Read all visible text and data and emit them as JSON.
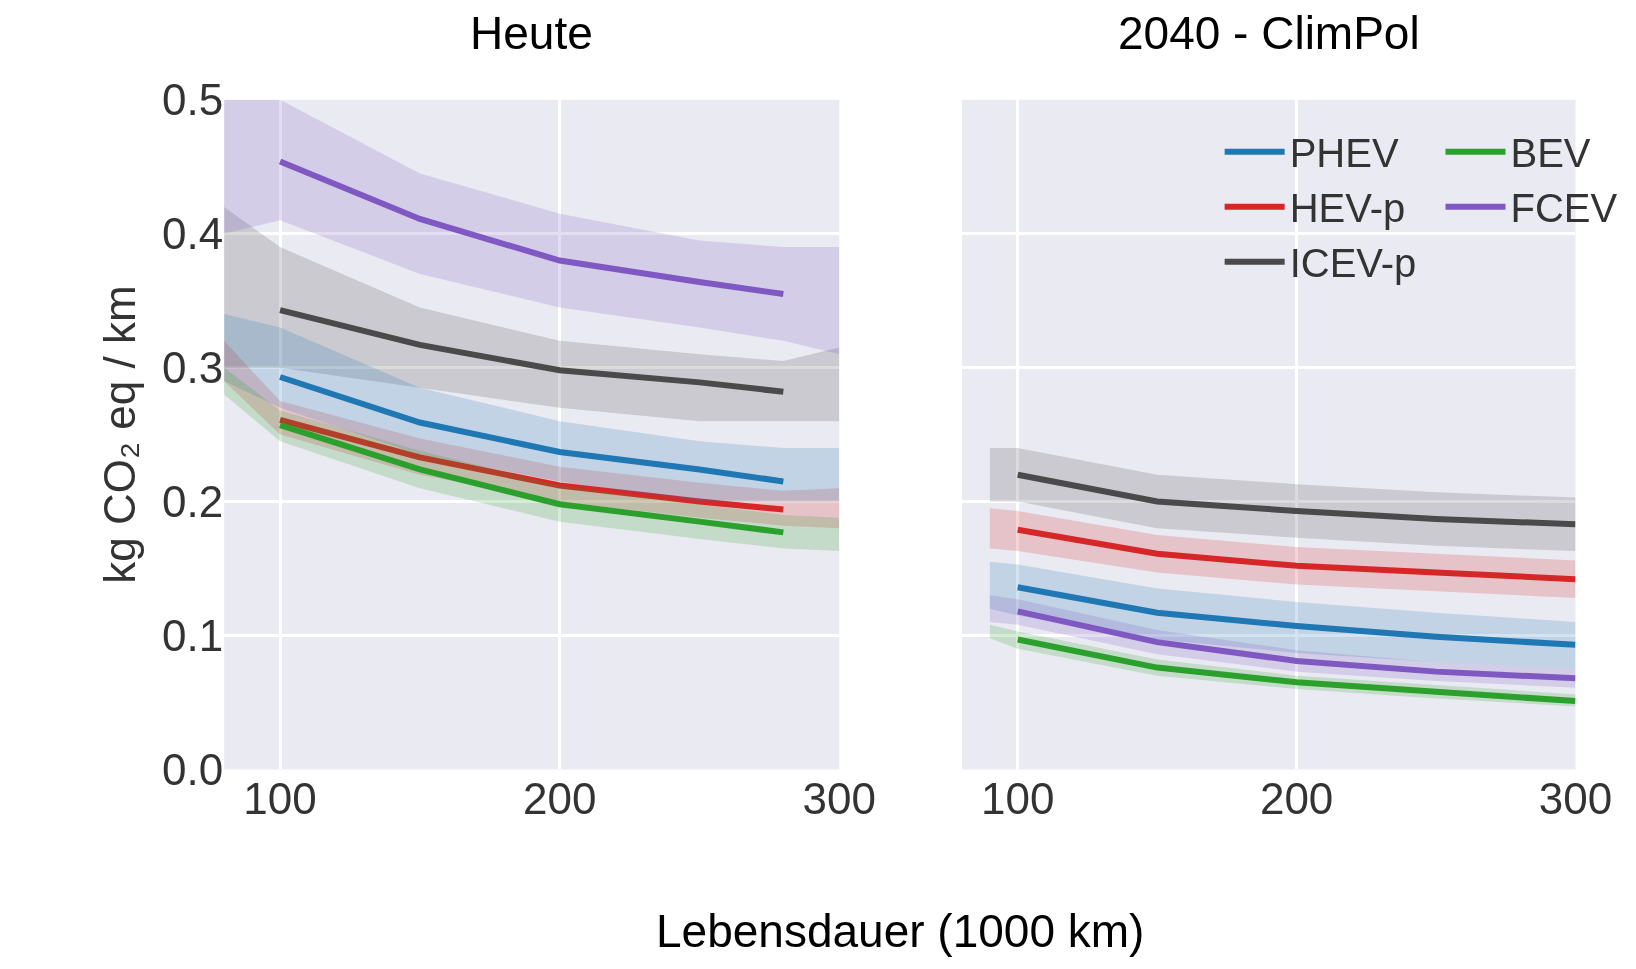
{
  "chart_data": [
    {
      "type": "line",
      "title": "Heute",
      "ylabel": "kg CO₂ eq / km",
      "xlabel": "Lebensdauer (1000 km)",
      "xlim": [
        80,
        300
      ],
      "xticks": [
        100,
        200,
        300
      ],
      "ylim": [
        0,
        0.5
      ],
      "yticks": [
        {
          "value": 0,
          "label": "0.0"
        },
        {
          "value": 0.1,
          "label": "0.1"
        },
        {
          "value": 0.2,
          "label": "0.2"
        },
        {
          "value": 0.3,
          "label": "0.3"
        },
        {
          "value": 0.4,
          "label": "0.4"
        },
        {
          "value": 0.5,
          "label": "0.5"
        }
      ],
      "grid": true,
      "legend": false,
      "line_style": "solid",
      "marker": "none",
      "series": [
        {
          "color": "#4a4a4a",
          "x": [
            80,
            100,
            150,
            200,
            250,
            280,
            300
          ],
          "values": [
            null,
            0.343,
            0.317,
            0.298,
            0.289,
            0.282,
            null
          ],
          "lower": [
            0.3,
            0.3,
            0.285,
            0.27,
            0.26,
            0.26,
            0.26
          ],
          "upper": [
            0.42,
            0.39,
            0.345,
            0.32,
            0.31,
            0.305,
            0.315
          ]
        },
        {
          "color": "#d62728",
          "x": [
            80,
            100,
            150,
            200,
            250,
            280,
            300
          ],
          "values": [
            null,
            0.261,
            0.233,
            0.212,
            0.2,
            0.194,
            null
          ],
          "lower": [
            0.29,
            0.25,
            0.22,
            0.2,
            0.188,
            0.182,
            0.18
          ],
          "upper": [
            0.32,
            0.275,
            0.247,
            0.226,
            0.214,
            0.208,
            0.21
          ]
        },
        {
          "color": "#1f77b4",
          "x": [
            80,
            100,
            150,
            200,
            250,
            280,
            300
          ],
          "values": [
            null,
            0.293,
            0.259,
            0.237,
            0.224,
            0.215,
            null
          ],
          "lower": [
            0.29,
            0.27,
            0.235,
            0.215,
            0.2,
            0.2,
            0.2
          ],
          "upper": [
            0.34,
            0.33,
            0.285,
            0.26,
            0.245,
            0.24,
            0.24
          ]
        },
        {
          "color": "#2ca02c",
          "x": [
            80,
            100,
            150,
            200,
            250,
            280,
            300
          ],
          "values": [
            null,
            0.257,
            0.224,
            0.198,
            0.185,
            0.177,
            null
          ],
          "lower": [
            0.28,
            0.245,
            0.21,
            0.185,
            0.172,
            0.165,
            0.163
          ],
          "upper": [
            0.3,
            0.268,
            0.238,
            0.212,
            0.198,
            0.19,
            0.188
          ]
        },
        {
          "color": "#7f58c2",
          "x": [
            80,
            100,
            150,
            200,
            250,
            280,
            300
          ],
          "values": [
            null,
            0.454,
            0.411,
            0.38,
            0.364,
            0.355,
            null
          ],
          "lower": [
            0.4,
            0.41,
            0.37,
            0.345,
            0.33,
            0.32,
            0.31
          ],
          "upper": [
            0.5,
            0.5,
            0.445,
            0.415,
            0.395,
            0.39,
            0.39
          ]
        }
      ]
    },
    {
      "type": "line",
      "title": "2040 - ClimPol",
      "xlim": [
        80,
        300
      ],
      "xticks": [
        100,
        200,
        300
      ],
      "ylim": [
        0,
        0.5
      ],
      "tick_labels": "x",
      "grid": true,
      "legend": "top right",
      "line_style": "solid",
      "marker": "none",
      "series": [
        {
          "name": "ICEV-p",
          "color": "#4a4a4a",
          "x": [
            90,
            100,
            150,
            200,
            250,
            300
          ],
          "values": [
            null,
            0.22,
            0.2,
            0.193,
            0.187,
            0.183
          ],
          "lower": [
            0.2,
            0.2,
            0.18,
            0.173,
            0.167,
            0.163
          ],
          "upper": [
            0.24,
            0.24,
            0.22,
            0.213,
            0.207,
            0.203
          ]
        },
        {
          "name": "HEV-p",
          "color": "#d62728",
          "x": [
            90,
            100,
            150,
            200,
            250,
            300
          ],
          "values": [
            null,
            0.179,
            0.161,
            0.152,
            0.147,
            0.142
          ],
          "lower": [
            0.165,
            0.163,
            0.147,
            0.138,
            0.133,
            0.128
          ],
          "upper": [
            0.195,
            0.193,
            0.175,
            0.166,
            0.161,
            0.156
          ]
        },
        {
          "name": "PHEV",
          "color": "#1f77b4",
          "x": [
            90,
            100,
            150,
            200,
            250,
            300
          ],
          "values": [
            null,
            0.136,
            0.117,
            0.107,
            0.099,
            0.093
          ],
          "lower": [
            0.12,
            0.115,
            0.097,
            0.087,
            0.08,
            0.075
          ],
          "upper": [
            0.155,
            0.153,
            0.135,
            0.125,
            0.117,
            0.11
          ]
        },
        {
          "name": "BEV",
          "color": "#2ca02c",
          "x": [
            90,
            100,
            150,
            200,
            250,
            300
          ],
          "values": [
            null,
            0.097,
            0.076,
            0.065,
            0.058,
            0.051
          ],
          "lower": [
            0.098,
            0.09,
            0.07,
            0.06,
            0.053,
            0.047
          ],
          "upper": [
            0.108,
            0.103,
            0.082,
            0.07,
            0.063,
            0.056
          ]
        },
        {
          "name": "FCEV",
          "color": "#7f58c2",
          "x": [
            90,
            100,
            150,
            200,
            250,
            300
          ],
          "values": [
            null,
            0.118,
            0.095,
            0.081,
            0.073,
            0.068
          ],
          "lower": [
            0.11,
            0.108,
            0.086,
            0.073,
            0.066,
            0.061
          ],
          "upper": [
            0.13,
            0.127,
            0.104,
            0.089,
            0.08,
            0.075
          ]
        }
      ]
    }
  ]
}
